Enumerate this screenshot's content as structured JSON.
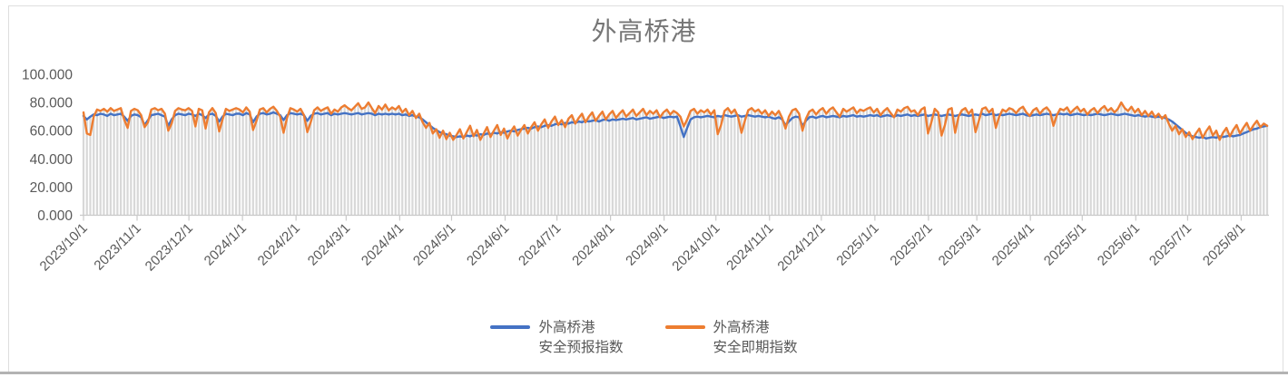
{
  "chart_data": {
    "type": "line",
    "title": "外高桥港",
    "x_start": "2023/10/1",
    "x_end": "2025/8/16",
    "x_ticks": [
      "2023/10/1",
      "2023/11/1",
      "2023/12/1",
      "2024/1/1",
      "2024/2/1",
      "2024/3/1",
      "2024/4/1",
      "2024/5/1",
      "2024/6/1",
      "2024/7/1",
      "2024/8/1",
      "2024/9/1",
      "2024/10/1",
      "2024/11/1",
      "2024/12/1",
      "2025/1/1",
      "2025/2/1",
      "2025/3/1",
      "2025/4/1",
      "2025/5/1",
      "2025/6/1",
      "2025/7/1",
      "2025/8/1"
    ],
    "y_ticks": [
      {
        "label": "0.000",
        "value": 0
      },
      {
        "label": "20.000",
        "value": 20
      },
      {
        "label": "40.000",
        "value": 40
      },
      {
        "label": "60.000",
        "value": 60
      },
      {
        "label": "80.000",
        "value": 80
      },
      {
        "label": "100.000",
        "value": 100
      }
    ],
    "ylim": [
      0,
      100
    ],
    "grid": false,
    "drop_lines": true,
    "legend_position": "bottom",
    "colors": {
      "forecast": "#4472C4",
      "spot": "#ED7D31",
      "drop_line": "#D8D8D8",
      "axis": "#C9C9C9",
      "text": "#595959",
      "title": "#767676"
    },
    "series": [
      {
        "name": "外高桥港\n安全预报指数",
        "values": [
          70.5,
          68.0,
          70.0,
          71.5,
          71.0,
          72.0,
          71.5,
          70.5,
          72.0,
          71.0,
          71.5,
          72.0,
          70.0,
          67.0,
          70.5,
          71.5,
          71.0,
          69.5,
          64.0,
          67.5,
          71.0,
          71.5,
          72.0,
          71.0,
          70.0,
          63.5,
          68.0,
          71.0,
          72.0,
          71.5,
          71.0,
          72.0,
          71.5,
          70.5,
          72.0,
          71.0,
          69.0,
          71.5,
          72.0,
          70.5,
          66.5,
          70.0,
          72.0,
          71.5,
          71.0,
          72.0,
          72.0,
          71.0,
          72.5,
          71.5,
          66.0,
          70.0,
          72.0,
          72.5,
          71.5,
          72.0,
          73.0,
          72.0,
          71.0,
          67.5,
          71.0,
          72.5,
          72.0,
          71.5,
          72.0,
          71.0,
          67.0,
          70.5,
          72.0,
          72.5,
          71.5,
          72.0,
          72.5,
          71.0,
          72.0,
          71.5,
          72.0,
          72.5,
          72.0,
          71.5,
          72.0,
          72.5,
          71.5,
          72.0,
          72.5,
          72.0,
          71.0,
          72.0,
          71.5,
          72.0,
          71.5,
          72.0,
          71.5,
          72.0,
          71.0,
          71.5,
          70.5,
          71.0,
          70.0,
          69.5,
          68.0,
          66.0,
          64.0,
          62.0,
          60.5,
          59.0,
          58.0,
          57.5,
          56.5,
          56.0,
          55.5,
          56.0,
          55.5,
          56.5,
          56.0,
          57.0,
          56.5,
          57.5,
          57.0,
          58.0,
          57.5,
          58.5,
          58.0,
          59.0,
          58.5,
          59.5,
          60.0,
          59.5,
          60.5,
          61.0,
          61.5,
          62.0,
          61.5,
          62.5,
          63.0,
          62.5,
          63.5,
          64.0,
          63.5,
          64.5,
          65.0,
          64.5,
          65.5,
          65.0,
          66.0,
          65.5,
          66.5,
          66.0,
          67.0,
          66.5,
          67.0,
          67.5,
          66.5,
          67.5,
          68.0,
          67.0,
          68.0,
          67.5,
          68.0,
          68.5,
          68.0,
          68.5,
          69.0,
          68.0,
          68.5,
          69.0,
          69.5,
          68.5,
          69.0,
          69.5,
          70.0,
          69.0,
          69.5,
          70.0,
          69.5,
          70.0,
          63.0,
          55.5,
          62.0,
          68.0,
          69.5,
          70.0,
          69.5,
          70.0,
          70.5,
          70.0,
          69.5,
          70.5,
          70.0,
          71.0,
          70.5,
          70.0,
          70.5,
          71.0,
          70.0,
          70.5,
          71.0,
          70.5,
          70.0,
          70.5,
          70.0,
          69.5,
          70.0,
          69.0,
          68.5,
          69.5,
          68.0,
          64.0,
          66.5,
          69.0,
          70.0,
          69.5,
          63.5,
          67.0,
          69.5,
          70.0,
          69.0,
          70.0,
          70.5,
          69.5,
          70.0,
          70.5,
          70.0,
          69.5,
          70.5,
          70.0,
          70.5,
          71.0,
          70.0,
          70.5,
          70.0,
          70.5,
          71.0,
          70.5,
          71.0,
          70.0,
          70.5,
          71.0,
          70.5,
          70.0,
          71.0,
          70.5,
          71.0,
          71.5,
          70.5,
          71.0,
          70.5,
          71.0,
          71.5,
          70.5,
          71.0,
          71.5,
          71.0,
          70.5,
          71.0,
          71.5,
          71.0,
          70.5,
          71.0,
          71.5,
          71.0,
          70.5,
          71.0,
          71.5,
          71.0,
          72.0,
          71.0,
          71.5,
          72.0,
          71.0,
          71.5,
          71.0,
          71.5,
          72.0,
          71.5,
          71.0,
          71.5,
          72.0,
          71.0,
          70.5,
          71.0,
          71.5,
          71.0,
          71.5,
          72.0,
          71.5,
          71.0,
          71.5,
          72.0,
          71.5,
          72.0,
          71.0,
          71.5,
          72.0,
          71.5,
          71.0,
          71.5,
          71.0,
          71.5,
          72.0,
          71.5,
          71.0,
          71.5,
          72.0,
          71.5,
          71.0,
          71.5,
          72.0,
          71.5,
          71.0,
          70.5,
          71.0,
          70.5,
          70.0,
          70.5,
          70.0,
          69.5,
          70.0,
          69.5,
          69.0,
          68.0,
          66.5,
          64.5,
          62.5,
          60.5,
          58.5,
          57.0,
          56.0,
          55.5,
          55.0,
          55.5,
          54.5,
          55.0,
          55.5,
          55.0,
          56.0,
          55.5,
          56.0,
          56.5,
          56.0,
          56.5,
          57.0,
          58.0,
          59.0,
          60.0,
          61.0,
          61.5,
          62.5,
          63.0,
          63.5
        ]
      },
      {
        "name": "外高桥港\n安全即期指数",
        "values": [
          73.0,
          58.0,
          57.0,
          70.0,
          75.0,
          74.0,
          75.5,
          73.5,
          76.0,
          74.0,
          75.0,
          76.0,
          68.0,
          62.0,
          74.0,
          75.5,
          74.5,
          71.0,
          62.5,
          66.0,
          75.0,
          76.0,
          74.5,
          75.5,
          72.0,
          60.0,
          65.0,
          74.0,
          76.0,
          75.0,
          74.5,
          76.0,
          74.0,
          63.0,
          75.5,
          74.5,
          61.5,
          73.0,
          76.0,
          72.5,
          59.5,
          68.0,
          75.5,
          74.0,
          75.0,
          76.0,
          75.0,
          73.0,
          76.5,
          73.5,
          60.5,
          67.0,
          75.0,
          76.0,
          73.0,
          75.5,
          77.0,
          74.0,
          70.0,
          58.5,
          69.0,
          76.0,
          75.0,
          73.5,
          75.5,
          71.0,
          59.0,
          66.0,
          74.5,
          76.5,
          74.0,
          75.5,
          76.5,
          72.0,
          75.0,
          73.5,
          76.5,
          78.0,
          76.0,
          74.5,
          77.0,
          79.5,
          75.5,
          76.5,
          80.0,
          76.0,
          72.5,
          77.5,
          75.0,
          78.5,
          74.5,
          76.5,
          75.0,
          77.5,
          73.0,
          75.5,
          71.0,
          74.0,
          69.0,
          72.0,
          66.0,
          62.0,
          65.5,
          58.0,
          61.0,
          55.0,
          60.0,
          54.0,
          58.5,
          53.5,
          57.0,
          61.0,
          54.5,
          59.0,
          63.5,
          56.0,
          60.5,
          53.5,
          58.0,
          62.5,
          55.5,
          60.0,
          64.0,
          57.0,
          61.5,
          54.5,
          59.5,
          63.0,
          56.5,
          60.5,
          64.0,
          58.0,
          62.5,
          66.0,
          60.0,
          64.5,
          68.0,
          62.0,
          66.5,
          70.0,
          64.0,
          67.5,
          62.5,
          68.5,
          71.0,
          65.0,
          69.0,
          72.0,
          66.0,
          70.0,
          73.0,
          67.0,
          70.5,
          73.5,
          68.0,
          71.5,
          74.0,
          69.0,
          72.0,
          74.5,
          70.0,
          72.5,
          75.0,
          70.5,
          73.0,
          75.5,
          71.0,
          74.0,
          72.0,
          74.5,
          69.5,
          73.0,
          75.0,
          71.5,
          74.0,
          72.5,
          70.0,
          63.0,
          68.0,
          74.0,
          75.5,
          72.0,
          74.5,
          73.0,
          75.0,
          71.5,
          74.5,
          57.5,
          64.0,
          74.0,
          76.0,
          72.5,
          75.0,
          70.0,
          58.5,
          67.0,
          74.5,
          76.0,
          73.5,
          75.0,
          72.0,
          74.5,
          70.5,
          73.5,
          71.0,
          74.0,
          69.0,
          61.5,
          70.0,
          74.5,
          75.5,
          72.0,
          60.0,
          68.5,
          73.5,
          75.0,
          71.5,
          74.5,
          76.0,
          72.0,
          75.0,
          76.5,
          73.0,
          70.0,
          75.5,
          73.5,
          75.0,
          76.5,
          72.5,
          75.0,
          74.0,
          75.5,
          76.5,
          73.0,
          75.5,
          71.0,
          74.0,
          76.0,
          72.5,
          69.5,
          75.0,
          73.5,
          76.0,
          77.0,
          73.5,
          74.5,
          71.0,
          75.0,
          76.5,
          58.0,
          66.0,
          75.5,
          73.0,
          56.5,
          64.0,
          75.0,
          76.0,
          58.5,
          70.0,
          74.5,
          76.0,
          72.0,
          75.0,
          59.0,
          67.0,
          75.5,
          76.5,
          73.0,
          75.5,
          62.0,
          70.0,
          75.0,
          73.5,
          76.0,
          75.0,
          72.5,
          75.5,
          77.0,
          73.0,
          70.5,
          74.5,
          76.0,
          72.0,
          75.0,
          76.5,
          73.5,
          63.5,
          71.0,
          75.5,
          74.5,
          76.5,
          72.5,
          75.0,
          77.0,
          73.5,
          75.5,
          71.5,
          74.5,
          76.0,
          72.5,
          75.5,
          77.5,
          74.0,
          76.0,
          73.0,
          75.5,
          80.0,
          76.0,
          74.0,
          77.0,
          73.0,
          75.5,
          71.0,
          74.0,
          70.5,
          73.5,
          69.5,
          72.0,
          68.5,
          71.0,
          65.0,
          60.0,
          63.5,
          57.5,
          61.0,
          55.5,
          59.0,
          54.0,
          58.0,
          61.5,
          55.0,
          59.5,
          63.0,
          56.5,
          60.0,
          53.5,
          58.5,
          62.0,
          56.0,
          60.5,
          64.0,
          58.0,
          62.0,
          65.5,
          60.0,
          64.0,
          67.0,
          62.5,
          65.0,
          63.5
        ]
      }
    ]
  }
}
